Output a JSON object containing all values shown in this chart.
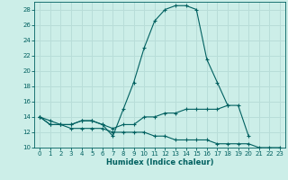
{
  "xlabel": "Humidex (Indice chaleur)",
  "bg_color": "#cceee8",
  "grid_color": "#b8ddd8",
  "line_color": "#006060",
  "xlim": [
    -0.5,
    23.5
  ],
  "ylim": [
    10,
    29
  ],
  "yticks": [
    10,
    12,
    14,
    16,
    18,
    20,
    22,
    24,
    26,
    28
  ],
  "xticks": [
    0,
    1,
    2,
    3,
    4,
    5,
    6,
    7,
    8,
    9,
    10,
    11,
    12,
    13,
    14,
    15,
    16,
    17,
    18,
    19,
    20,
    21,
    22,
    23
  ],
  "series": [
    {
      "x": [
        0,
        1,
        2,
        3,
        4,
        5,
        6,
        7,
        8,
        9,
        10,
        11,
        12,
        13,
        14,
        15,
        16,
        17,
        18
      ],
      "y": [
        14,
        13,
        13,
        13,
        13.5,
        13.5,
        13,
        11.5,
        15,
        18.5,
        23,
        26.5,
        28,
        28.5,
        28.5,
        28,
        21.5,
        18.5,
        15.5
      ]
    },
    {
      "x": [
        0,
        1,
        2,
        3,
        4,
        5,
        6,
        7,
        8,
        9,
        10,
        11,
        12,
        13,
        14,
        15,
        16,
        17,
        18,
        19,
        20
      ],
      "y": [
        14,
        13.5,
        13,
        13,
        13.5,
        13.5,
        13,
        12.5,
        13,
        13,
        14,
        14,
        14.5,
        14.5,
        15,
        15,
        15,
        15,
        15.5,
        15.5,
        11.5
      ]
    },
    {
      "x": [
        0,
        1,
        2,
        3,
        4,
        5,
        6,
        7,
        8,
        9,
        10,
        11,
        12,
        13,
        14,
        15,
        16,
        17,
        18,
        19,
        20,
        21,
        22,
        23
      ],
      "y": [
        14,
        13,
        13,
        12.5,
        12.5,
        12.5,
        12.5,
        12,
        12,
        12,
        12,
        11.5,
        11.5,
        11,
        11,
        11,
        11,
        10.5,
        10.5,
        10.5,
        10.5,
        10,
        10,
        10
      ]
    }
  ]
}
